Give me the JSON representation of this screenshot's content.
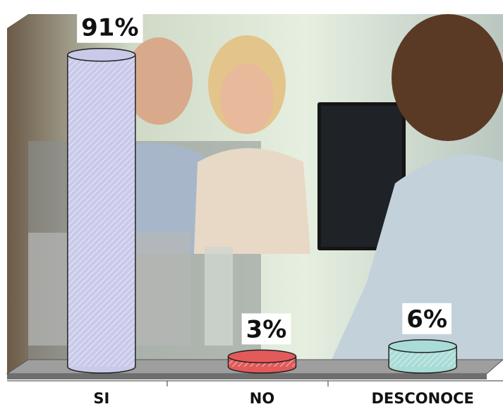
{
  "chart_data": {
    "type": "bar3d",
    "categories": [
      "SI",
      "NO",
      "DESCONOCE"
    ],
    "values": [
      91,
      3,
      6
    ],
    "value_labels": [
      "91%",
      "3%",
      "6%"
    ],
    "colors": [
      "#c9c9ea",
      "#e25a5a",
      "#a9dcd6"
    ],
    "ylim": [
      0,
      100
    ]
  }
}
